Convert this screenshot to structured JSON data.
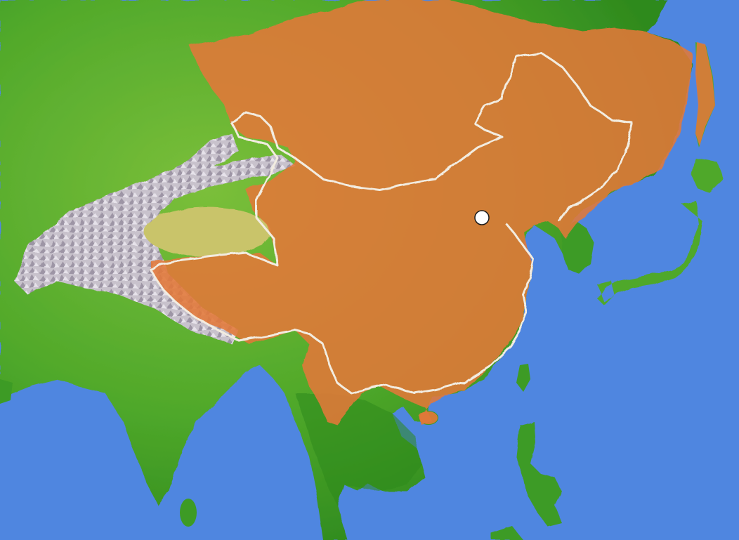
{
  "map": {
    "colors": {
      "ocean": "#4f86e0",
      "land_lowland": "#4fa82a",
      "land_forest": "#2f8a1e",
      "land_upland": "#a9c93a",
      "desert_basin": "#c9c46a",
      "high_mountains": "#bdb6c4",
      "empire_overlay": "#e2783a",
      "modern_border": "#f2ece0",
      "capital_marker": "#ffffff"
    },
    "regions": [
      {
        "name": "empire-territory",
        "description_shown": false
      },
      {
        "name": "modern-china-border",
        "description_shown": false
      }
    ],
    "markers": [
      {
        "name": "capital-city",
        "icon": "white-circle"
      }
    ]
  }
}
